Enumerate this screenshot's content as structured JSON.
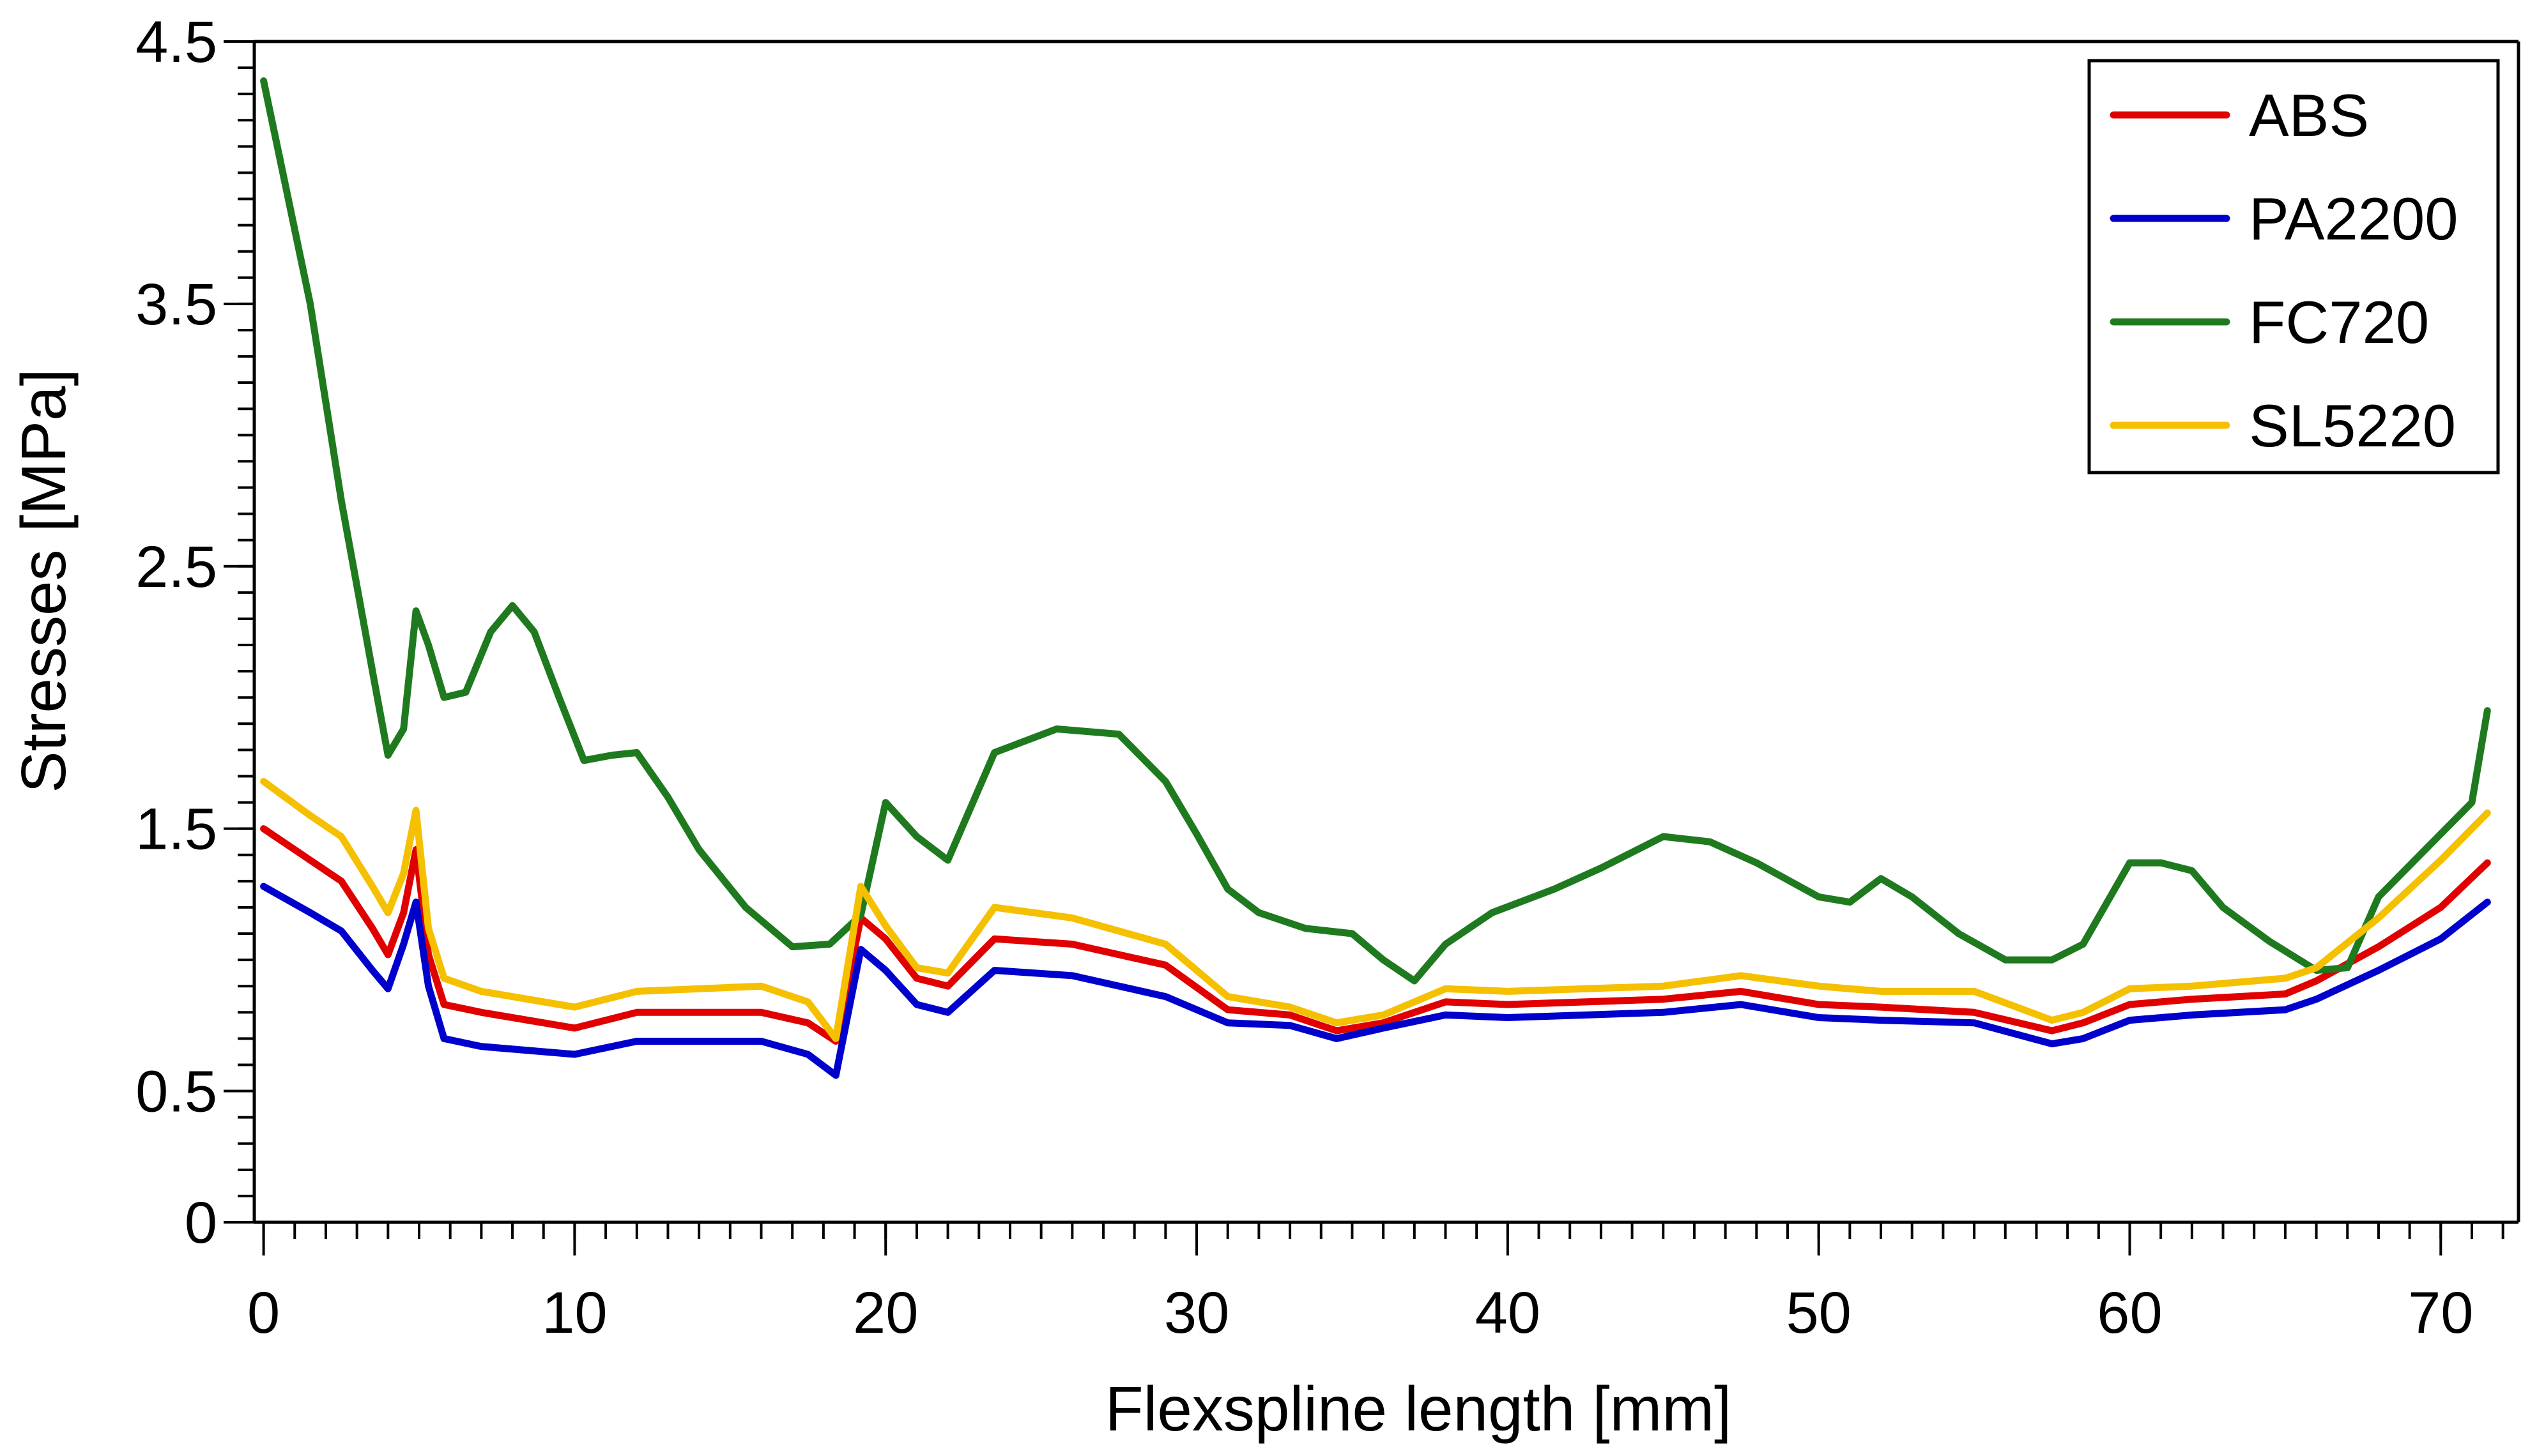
{
  "chart_data": {
    "type": "line",
    "title": "",
    "xlabel": "Flexspline length [mm]",
    "ylabel": "Stresses [MPa]",
    "xlim": [
      -0.3,
      72.5
    ],
    "ylim": [
      0,
      4.5
    ],
    "xticks": [
      0,
      10,
      20,
      30,
      40,
      50,
      60,
      70
    ],
    "xtick_labels": [
      "0",
      "10",
      "20",
      "30",
      "40",
      "50",
      "60",
      "70"
    ],
    "yticks": [
      0,
      0.5,
      1.5,
      2.5,
      3.5,
      4.5
    ],
    "ytick_labels": [
      "0",
      "0.5",
      "1.5",
      "2.5",
      "3.5",
      "4.5"
    ],
    "grid": false,
    "legend_position": "top-right",
    "series": [
      {
        "name": "ABS",
        "color": "#e00000",
        "x": [
          0,
          1.5,
          2.5,
          3.5,
          4,
          4.5,
          4.9,
          5.3,
          5.8,
          7,
          10,
          12,
          16,
          17.5,
          18.4,
          19.2,
          20,
          21,
          22,
          23.5,
          26,
          29,
          31,
          33,
          34.5,
          36,
          38,
          40,
          45,
          47.5,
          50,
          52,
          55,
          57.5,
          58.5,
          60,
          62,
          65,
          66,
          68,
          70,
          71.5
        ],
        "y": [
          1.5,
          1.38,
          1.3,
          1.12,
          1.02,
          1.18,
          1.42,
          1.02,
          0.83,
          0.8,
          0.74,
          0.8,
          0.8,
          0.76,
          0.69,
          1.16,
          1.08,
          0.93,
          0.9,
          1.08,
          1.06,
          0.98,
          0.81,
          0.79,
          0.73,
          0.76,
          0.84,
          0.83,
          0.85,
          0.88,
          0.83,
          0.82,
          0.8,
          0.73,
          0.76,
          0.83,
          0.85,
          0.87,
          0.92,
          1.05,
          1.2,
          1.37
        ]
      },
      {
        "name": "PA2200",
        "color": "#0000cc",
        "x": [
          0,
          1.5,
          2.5,
          3.5,
          4,
          4.5,
          4.9,
          5.3,
          5.8,
          7,
          10,
          12,
          16,
          17.5,
          18.4,
          19.2,
          20,
          21,
          22,
          23.5,
          26,
          29,
          31,
          33,
          34.5,
          36,
          38,
          40,
          45,
          47.5,
          50,
          52,
          55,
          57.5,
          58.5,
          60,
          62,
          65,
          66,
          68,
          70,
          71.5
        ],
        "y": [
          1.28,
          1.18,
          1.11,
          0.96,
          0.89,
          1.06,
          1.22,
          0.9,
          0.7,
          0.67,
          0.64,
          0.69,
          0.69,
          0.64,
          0.56,
          1.04,
          0.96,
          0.83,
          0.8,
          0.96,
          0.94,
          0.86,
          0.76,
          0.75,
          0.7,
          0.74,
          0.79,
          0.78,
          0.8,
          0.83,
          0.78,
          0.77,
          0.76,
          0.68,
          0.7,
          0.77,
          0.79,
          0.81,
          0.85,
          0.96,
          1.08,
          1.22
        ]
      },
      {
        "name": "FC720",
        "color": "#1f7a1f",
        "x": [
          0,
          1.5,
          2.5,
          3.5,
          4,
          4.5,
          4.9,
          5.3,
          5.8,
          6.5,
          7.3,
          8,
          8.7,
          9.5,
          10.3,
          11.2,
          12,
          13,
          14,
          15.5,
          17,
          18.2,
          19.2,
          20,
          21,
          22,
          23.5,
          25.5,
          27.5,
          29,
          30,
          31,
          32,
          33.5,
          35,
          36,
          37,
          38,
          39.5,
          41.5,
          43,
          45,
          46.5,
          48,
          50,
          51,
          52,
          53,
          54.5,
          56,
          57.5,
          58.5,
          60,
          61,
          62,
          63,
          64.5,
          66,
          67,
          68,
          69.5,
          71,
          71.5
        ],
        "y": [
          4.35,
          3.5,
          2.75,
          2.1,
          1.78,
          1.88,
          2.33,
          2.2,
          2.0,
          2.02,
          2.25,
          2.35,
          2.25,
          2.0,
          1.76,
          1.78,
          1.79,
          1.62,
          1.42,
          1.2,
          1.05,
          1.06,
          1.17,
          1.6,
          1.47,
          1.38,
          1.79,
          1.88,
          1.86,
          1.68,
          1.48,
          1.27,
          1.18,
          1.12,
          1.1,
          1.0,
          0.92,
          1.06,
          1.18,
          1.27,
          1.35,
          1.47,
          1.45,
          1.37,
          1.24,
          1.22,
          1.31,
          1.24,
          1.1,
          1.0,
          1.0,
          1.06,
          1.37,
          1.37,
          1.34,
          1.2,
          1.07,
          0.96,
          0.97,
          1.24,
          1.42,
          1.6,
          1.95
        ]
      },
      {
        "name": "SL5220",
        "color": "#f5c000",
        "x": [
          0,
          1.5,
          2.5,
          3.5,
          4,
          4.5,
          4.9,
          5.3,
          5.8,
          7,
          10,
          12,
          16,
          17.5,
          18.4,
          19.2,
          20,
          21,
          22,
          23.5,
          26,
          29,
          31,
          33,
          34.5,
          36,
          38,
          40,
          45,
          47.5,
          50,
          52,
          55,
          57.5,
          58.5,
          60,
          62,
          65,
          66,
          68,
          70,
          71.5
        ],
        "y": [
          1.68,
          1.55,
          1.47,
          1.28,
          1.18,
          1.33,
          1.57,
          1.12,
          0.93,
          0.88,
          0.82,
          0.88,
          0.9,
          0.84,
          0.7,
          1.28,
          1.13,
          0.97,
          0.95,
          1.2,
          1.16,
          1.06,
          0.86,
          0.82,
          0.76,
          0.79,
          0.89,
          0.88,
          0.9,
          0.94,
          0.9,
          0.88,
          0.88,
          0.77,
          0.8,
          0.89,
          0.9,
          0.93,
          0.97,
          1.16,
          1.38,
          1.56
        ]
      }
    ]
  }
}
